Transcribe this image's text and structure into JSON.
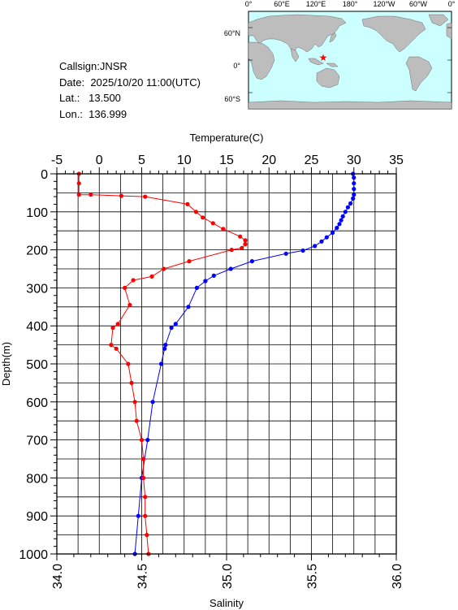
{
  "station": {
    "callsign_label": "Callsign:",
    "callsign": "JNSR",
    "date_label": "Date:",
    "date": "2025/10/20 11:00(UTC)",
    "lat_label": "Lat.:",
    "lat": "13.500",
    "lon_label": "Lon.:",
    "lon": "136.999"
  },
  "map": {
    "lon_labels": [
      "0°",
      "60°E",
      "120°E",
      "180°",
      "120°W",
      "60°W",
      "0°"
    ],
    "lat_labels": [
      "60°N",
      "0°",
      "60°S"
    ],
    "ocean_color": "#ccffff",
    "land_color": "#bdbdbd",
    "marker": "red-star",
    "marker_color": "#ff0000",
    "marker_lat": 13.5,
    "marker_lon": 136.999
  },
  "chart_data": {
    "type": "line",
    "title": "",
    "ylabel": "Depth(m)",
    "ylim": [
      1000,
      0
    ],
    "yticks": [
      0,
      100,
      200,
      300,
      400,
      500,
      600,
      700,
      800,
      900,
      1000
    ],
    "top_axis": {
      "label": "Temperature(C)",
      "lim": [
        -5,
        35
      ],
      "ticks": [
        -5,
        0,
        5,
        10,
        15,
        20,
        25,
        30,
        35
      ]
    },
    "bottom_axis": {
      "label": "Salinity",
      "lim": [
        34.0,
        36.0
      ],
      "ticks": [
        "34.0",
        "34.5",
        "35.0",
        "35.5",
        "36.0"
      ]
    },
    "grid": true,
    "series": [
      {
        "axis": "temperature",
        "color": "#0000ff",
        "points": [
          [
            29.9,
            0
          ],
          [
            30.0,
            10
          ],
          [
            30.0,
            25
          ],
          [
            30.0,
            40
          ],
          [
            30.0,
            55
          ],
          [
            29.9,
            65
          ],
          [
            29.6,
            78
          ],
          [
            29.3,
            88
          ],
          [
            29.0,
            100
          ],
          [
            28.7,
            112
          ],
          [
            28.5,
            122
          ],
          [
            28.3,
            132
          ],
          [
            28.0,
            142
          ],
          [
            27.5,
            155
          ],
          [
            26.8,
            167
          ],
          [
            26.2,
            178
          ],
          [
            25.4,
            190
          ],
          [
            24.0,
            202
          ],
          [
            22.0,
            210
          ],
          [
            18.0,
            230
          ],
          [
            15.5,
            250
          ],
          [
            13.5,
            268
          ],
          [
            12.5,
            282
          ],
          [
            11.5,
            300
          ],
          [
            10.5,
            350
          ],
          [
            9.0,
            395
          ],
          [
            8.5,
            405
          ],
          [
            7.8,
            450
          ],
          [
            7.7,
            460
          ],
          [
            7.3,
            500
          ],
          [
            6.3,
            600
          ],
          [
            5.7,
            700
          ],
          [
            5.0,
            800
          ],
          [
            4.6,
            900
          ],
          [
            4.2,
            1000
          ]
        ]
      },
      {
        "axis": "salinity",
        "color": "#ff0000",
        "points": [
          [
            34.13,
            0
          ],
          [
            34.13,
            25
          ],
          [
            34.13,
            55
          ],
          [
            34.2,
            55
          ],
          [
            34.38,
            58
          ],
          [
            34.52,
            60
          ],
          [
            34.77,
            80
          ],
          [
            34.82,
            100
          ],
          [
            34.86,
            115
          ],
          [
            34.92,
            130
          ],
          [
            34.98,
            145
          ],
          [
            35.08,
            165
          ],
          [
            35.11,
            175
          ],
          [
            35.11,
            185
          ],
          [
            35.09,
            195
          ],
          [
            35.03,
            200
          ],
          [
            34.78,
            230
          ],
          [
            34.63,
            250
          ],
          [
            34.56,
            270
          ],
          [
            34.45,
            280
          ],
          [
            34.4,
            300
          ],
          [
            34.43,
            345
          ],
          [
            34.36,
            395
          ],
          [
            34.33,
            405
          ],
          [
            34.32,
            450
          ],
          [
            34.35,
            460
          ],
          [
            34.42,
            500
          ],
          [
            34.44,
            550
          ],
          [
            34.46,
            600
          ],
          [
            34.47,
            650
          ],
          [
            34.5,
            700
          ],
          [
            34.51,
            750
          ],
          [
            34.51,
            800
          ],
          [
            34.52,
            850
          ],
          [
            34.52,
            900
          ],
          [
            34.53,
            950
          ],
          [
            34.54,
            1000
          ]
        ]
      }
    ]
  }
}
